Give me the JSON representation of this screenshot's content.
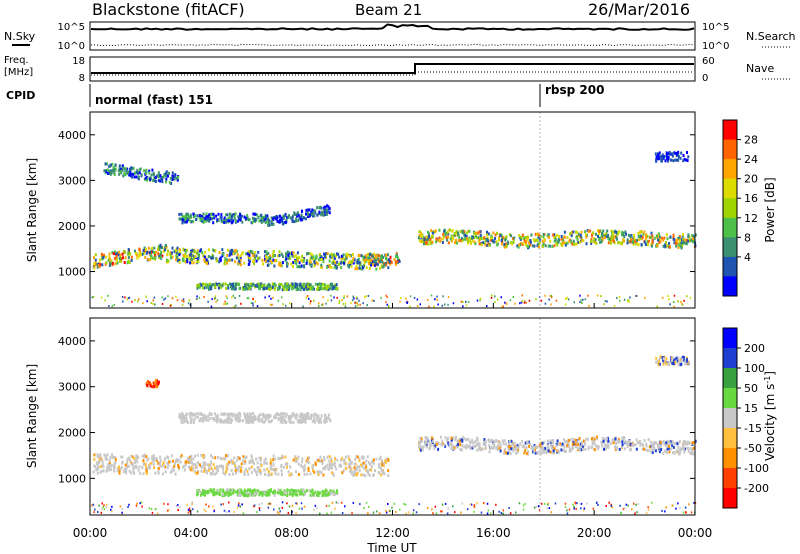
{
  "header": {
    "title": "Blackstone (fitACF)",
    "beam": "Beam 21",
    "date": "26/Mar/2016"
  },
  "top_panels": {
    "nsky_label": "N.Sky",
    "nsearch_label": "N.Search",
    "noise_ticks": [
      "10^5",
      "10^0"
    ],
    "freq_label": "Freq.",
    "freq_unit": "[MHz]",
    "freq_ticks": [
      "18",
      "8"
    ],
    "nave_label": "Nave",
    "nave_ticks": [
      "60",
      "0"
    ],
    "cpid_label": "CPID",
    "cpid_segments": [
      {
        "label": "normal (fast) 151",
        "start_hour": 0
      },
      {
        "label": "rbsp 200",
        "start_hour": 18
      }
    ]
  },
  "chart_data": [
    {
      "type": "heatmap",
      "name": "power",
      "ylabel": "Slant Range [km]",
      "yticks": [
        1000,
        2000,
        3000,
        4000
      ],
      "ylim": [
        200,
        4500
      ],
      "xlim": [
        0,
        24
      ],
      "colorbar_label": "Power [dB]",
      "colorbar_ticks": [
        "28",
        "24",
        "20",
        "16",
        "12",
        "8",
        "4"
      ],
      "colorbar_colors": [
        "#ff0000",
        "#ff6400",
        "#ffa500",
        "#dcdc00",
        "#a0d400",
        "#4ec04a",
        "#3a9070",
        "#1f55b0",
        "#0000ff"
      ]
    },
    {
      "type": "heatmap",
      "name": "velocity",
      "ylabel": "Slant Range [km]",
      "yticks": [
        1000,
        2000,
        3000,
        4000
      ],
      "ylim": [
        200,
        4500
      ],
      "xlim": [
        0,
        24
      ],
      "xlabel": "Time UT",
      "xticks": [
        "00:00",
        "04:00",
        "08:00",
        "12:00",
        "16:00",
        "20:00",
        "00:00"
      ],
      "colorbar_label": "Velocity [m s",
      "colorbar_label_sup": "-1",
      "colorbar_label_end": "]",
      "colorbar_ticks": [
        "200",
        "100",
        "50",
        "15",
        "-15",
        "-50",
        "-100",
        "-200"
      ],
      "colorbar_colors": [
        "#0000ff",
        "#1f3fd0",
        "#3aa040",
        "#6ad840",
        "#c8c8c8",
        "#ffc040",
        "#ff9000",
        "#ff4000",
        "#ff0000"
      ]
    }
  ]
}
